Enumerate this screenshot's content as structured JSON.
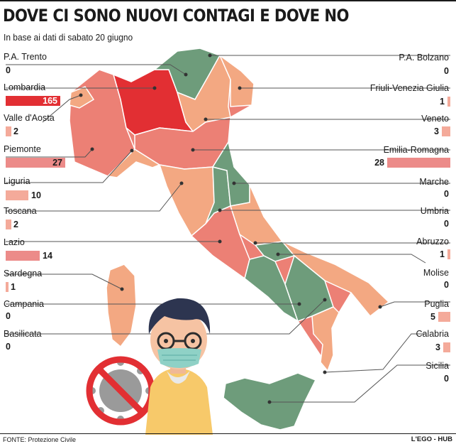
{
  "title": "DOVE CI SONO NUOVI CONTAGI E DOVE NO",
  "subtitle": "In base ai dati di sabato 20 giugno",
  "source": "FONTE: Protezione Civile",
  "brand": "L'EGO - HUB",
  "colors": {
    "zero": "#6e9c7b",
    "low": "#f3a882",
    "mid": "#ec8075",
    "high": "#e22f33",
    "bar_small": "#f4aa9a",
    "bar_mid": "#ec8b89",
    "bar_high": "#e22f33",
    "leader": "#555555"
  },
  "chart_data": {
    "type": "bar",
    "categories": [
      "P.A. Trento",
      "Lombardia",
      "Valle d'Aosta",
      "Piemonte",
      "Liguria",
      "Toscana",
      "Lazio",
      "Sardegna",
      "Campania",
      "Basilicata",
      "P.A. Bolzano",
      "Friuli-Venezia Giulia",
      "Veneto",
      "Emilia-Romagna",
      "Marche",
      "Umbria",
      "Abruzzo",
      "Molise",
      "Puglia",
      "Calabria",
      "Sicilia"
    ],
    "values": [
      0,
      165,
      2,
      27,
      10,
      2,
      14,
      1,
      0,
      0,
      0,
      1,
      3,
      28,
      0,
      0,
      1,
      0,
      5,
      3,
      0
    ],
    "legend": "none",
    "grid": false
  },
  "left_regions": [
    {
      "name": "P.A. Trento",
      "value": "0"
    },
    {
      "name": "Lombardia",
      "value": "165"
    },
    {
      "name": "Valle d'Aosta",
      "value": "2"
    },
    {
      "name": "Piemonte",
      "value": "27"
    },
    {
      "name": "Liguria",
      "value": "10"
    },
    {
      "name": "Toscana",
      "value": "2"
    },
    {
      "name": "Lazio",
      "value": "14"
    },
    {
      "name": "Sardegna",
      "value": "1"
    },
    {
      "name": "Campania",
      "value": "0"
    },
    {
      "name": "Basilicata",
      "value": "0"
    }
  ],
  "right_regions": [
    {
      "name": "P.A. Bolzano",
      "value": "0"
    },
    {
      "name": "Friuli-Venezia Giulia",
      "value": "1"
    },
    {
      "name": "Veneto",
      "value": "3"
    },
    {
      "name": "Emilia-Romagna",
      "value": "28"
    },
    {
      "name": "Marche",
      "value": "0"
    },
    {
      "name": "Umbria",
      "value": "0"
    },
    {
      "name": "Abruzzo",
      "value": "1"
    },
    {
      "name": "Molise",
      "value": "0"
    },
    {
      "name": "Puglia",
      "value": "5"
    },
    {
      "name": "Calabria",
      "value": "3"
    },
    {
      "name": "Sicilia",
      "value": "0"
    }
  ]
}
